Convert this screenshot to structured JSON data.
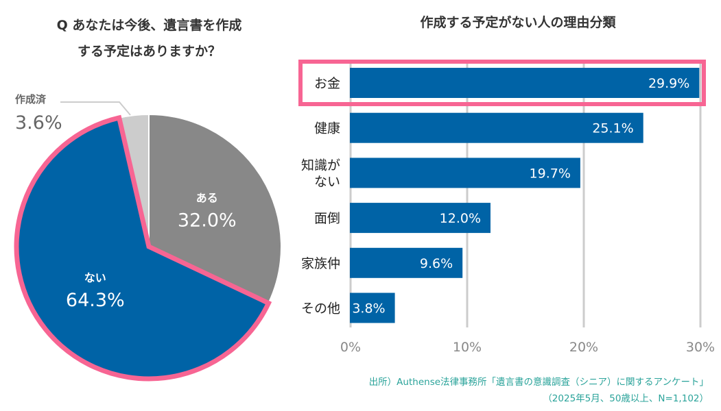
{
  "chart_data": [
    {
      "type": "pie",
      "title_line1": "Q あなたは今後、遺言書を作成",
      "title_line2": "する予定はありますか？",
      "slices": [
        {
          "label": "ある",
          "value": 32.0,
          "value_label": "32.0%",
          "color": "#888888",
          "highlight": false
        },
        {
          "label": "ない",
          "value": 64.3,
          "value_label": "64.3%",
          "color": "#0063a6",
          "highlight": true
        },
        {
          "label": "作成済",
          "value": 3.6,
          "value_label": "3.6%",
          "color": "#cccccc",
          "highlight": false
        }
      ],
      "highlight_color": "#f76593"
    },
    {
      "type": "bar",
      "orientation": "horizontal",
      "title": "作成する予定がない人の理由分類",
      "categories": [
        [
          "お金"
        ],
        [
          "健康"
        ],
        [
          "知識が",
          "ない"
        ],
        [
          "面倒"
        ],
        [
          "家族仲"
        ],
        [
          "その他"
        ]
      ],
      "values": [
        29.9,
        25.1,
        19.7,
        12.0,
        9.6,
        3.8
      ],
      "value_labels": [
        "29.9%",
        "25.1%",
        "19.7%",
        "12.0%",
        "9.6%",
        "3.8%"
      ],
      "xlim": [
        0,
        30
      ],
      "xticks": [
        0,
        10,
        20,
        30
      ],
      "xtick_labels": [
        "0%",
        "10%",
        "20%",
        "30%"
      ],
      "grid": true,
      "bar_color": "#0063a6",
      "highlight_index": 0,
      "highlight_color": "#f76593"
    }
  ],
  "source": {
    "line1": "出所）Authense法律事務所「遺言書の意識調査（シニア）に関するアンケート」",
    "line2": "（2025年5月、50歳以上、N=1,102）"
  }
}
